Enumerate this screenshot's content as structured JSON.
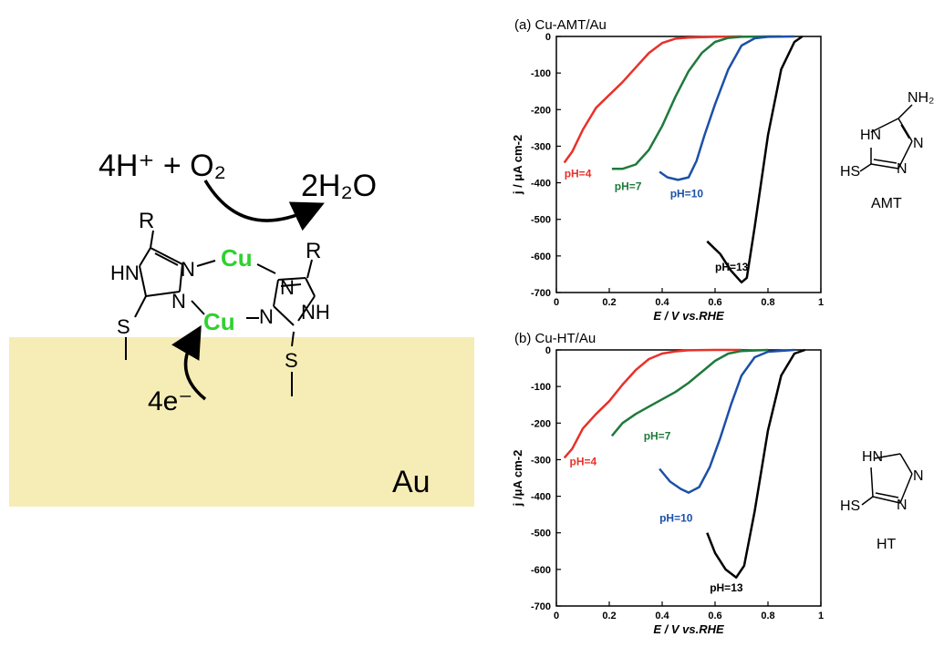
{
  "scheme": {
    "reactants": "4H⁺ + O₂",
    "products": "2H₂O",
    "electrons": "4e⁻",
    "surface": "Au",
    "metal_label": "Cu",
    "r_label": "R",
    "atoms": {
      "hn": "HN",
      "nh": "NH",
      "n": "N",
      "s": "S"
    },
    "colors": {
      "surface": "#f6ecb6",
      "metal": "#2fd12f"
    }
  },
  "structures": {
    "amt": {
      "name": "AMT",
      "nh2": "NH₂",
      "hn": "HN",
      "hs": "HS",
      "n": "N"
    },
    "ht": {
      "name": "HT",
      "hn": "HN",
      "hs": "HS",
      "n": "N"
    }
  },
  "chart_data": [
    {
      "type": "line",
      "title": "(a) Cu-AMT/Au",
      "xlabel": "E / V vs.RHE",
      "ylabel": "j / μA cm-2",
      "xlim": [
        0,
        1
      ],
      "ylim": [
        -700,
        0
      ],
      "xticks": [
        "0",
        "0.2",
        "0.4",
        "0.6",
        "0.8",
        "1"
      ],
      "yticks": [
        "0",
        "-100",
        "-200",
        "-300",
        "-400",
        "-500",
        "-600",
        "-700"
      ],
      "series": [
        {
          "name": "pH=4",
          "color": "#e8312a",
          "points": [
            [
              0.03,
              -345
            ],
            [
              0.06,
              -315
            ],
            [
              0.1,
              -255
            ],
            [
              0.15,
              -195
            ],
            [
              0.2,
              -160
            ],
            [
              0.25,
              -125
            ],
            [
              0.3,
              -85
            ],
            [
              0.35,
              -45
            ],
            [
              0.4,
              -18
            ],
            [
              0.45,
              -6
            ],
            [
              0.5,
              -3
            ],
            [
              0.6,
              -1
            ],
            [
              0.7,
              0
            ]
          ]
        },
        {
          "name": "pH=7",
          "color": "#1e7a3c",
          "points": [
            [
              0.21,
              -362
            ],
            [
              0.25,
              -362
            ],
            [
              0.3,
              -350
            ],
            [
              0.35,
              -310
            ],
            [
              0.4,
              -245
            ],
            [
              0.45,
              -165
            ],
            [
              0.5,
              -95
            ],
            [
              0.55,
              -45
            ],
            [
              0.6,
              -15
            ],
            [
              0.65,
              -4
            ],
            [
              0.7,
              -1
            ],
            [
              0.8,
              0
            ],
            [
              0.85,
              0
            ]
          ]
        },
        {
          "name": "pH=10",
          "color": "#1c50a8",
          "points": [
            [
              0.39,
              -370
            ],
            [
              0.42,
              -385
            ],
            [
              0.46,
              -392
            ],
            [
              0.5,
              -385
            ],
            [
              0.53,
              -340
            ],
            [
              0.56,
              -270
            ],
            [
              0.6,
              -185
            ],
            [
              0.65,
              -90
            ],
            [
              0.7,
              -25
            ],
            [
              0.75,
              -5
            ],
            [
              0.8,
              -1
            ],
            [
              0.9,
              0
            ]
          ]
        },
        {
          "name": "pH=13",
          "color": "#000000",
          "points": [
            [
              0.57,
              -560
            ],
            [
              0.62,
              -595
            ],
            [
              0.66,
              -640
            ],
            [
              0.7,
              -672
            ],
            [
              0.72,
              -660
            ],
            [
              0.75,
              -520
            ],
            [
              0.8,
              -270
            ],
            [
              0.85,
              -90
            ],
            [
              0.9,
              -15
            ],
            [
              0.93,
              0
            ]
          ]
        }
      ]
    },
    {
      "type": "line",
      "title": "(b) Cu-HT/Au",
      "xlabel": "E / V vs.RHE",
      "ylabel": "j /μA cm-2",
      "xlim": [
        0,
        1
      ],
      "ylim": [
        -700,
        0
      ],
      "xticks": [
        "0",
        "0.2",
        "0.4",
        "0.6",
        "0.8",
        "1"
      ],
      "yticks": [
        "0",
        "-100",
        "-200",
        "-300",
        "-400",
        "-500",
        "-600",
        "-700"
      ],
      "series": [
        {
          "name": "pH=4",
          "color": "#e8312a",
          "points": [
            [
              0.03,
              -295
            ],
            [
              0.06,
              -270
            ],
            [
              0.1,
              -215
            ],
            [
              0.15,
              -175
            ],
            [
              0.2,
              -140
            ],
            [
              0.25,
              -95
            ],
            [
              0.3,
              -55
            ],
            [
              0.35,
              -25
            ],
            [
              0.4,
              -10
            ],
            [
              0.45,
              -4
            ],
            [
              0.5,
              -1
            ],
            [
              0.6,
              0
            ],
            [
              0.7,
              0
            ]
          ]
        },
        {
          "name": "pH=7",
          "color": "#1e7a3c",
          "points": [
            [
              0.21,
              -235
            ],
            [
              0.25,
              -200
            ],
            [
              0.3,
              -175
            ],
            [
              0.35,
              -155
            ],
            [
              0.4,
              -135
            ],
            [
              0.45,
              -115
            ],
            [
              0.5,
              -90
            ],
            [
              0.55,
              -60
            ],
            [
              0.6,
              -30
            ],
            [
              0.65,
              -10
            ],
            [
              0.7,
              -3
            ],
            [
              0.8,
              0
            ]
          ]
        },
        {
          "name": "pH=10",
          "color": "#1c50a8",
          "points": [
            [
              0.39,
              -325
            ],
            [
              0.43,
              -360
            ],
            [
              0.47,
              -380
            ],
            [
              0.5,
              -390
            ],
            [
              0.54,
              -375
            ],
            [
              0.58,
              -320
            ],
            [
              0.62,
              -240
            ],
            [
              0.66,
              -150
            ],
            [
              0.7,
              -70
            ],
            [
              0.75,
              -20
            ],
            [
              0.8,
              -5
            ],
            [
              0.9,
              0
            ]
          ]
        },
        {
          "name": "pH=13",
          "color": "#000000",
          "points": [
            [
              0.57,
              -500
            ],
            [
              0.6,
              -555
            ],
            [
              0.64,
              -600
            ],
            [
              0.68,
              -622
            ],
            [
              0.71,
              -590
            ],
            [
              0.75,
              -440
            ],
            [
              0.8,
              -220
            ],
            [
              0.85,
              -70
            ],
            [
              0.9,
              -10
            ],
            [
              0.94,
              0
            ]
          ]
        }
      ]
    }
  ]
}
